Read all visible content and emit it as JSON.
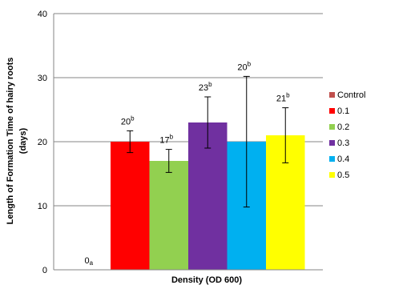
{
  "chart_data": {
    "type": "bar",
    "xlabel": "Density (OD 600)",
    "ylabel_line1": "Length of Formation Time of hairy roots",
    "ylabel_line2": "(days)",
    "ylim": [
      0,
      40
    ],
    "yticks": [
      "0",
      "10",
      "20",
      "30",
      "40"
    ],
    "grid": true,
    "legend_position": "right",
    "series": [
      {
        "name": "Control",
        "value": 0,
        "error": 0,
        "label": "0",
        "letter": "a",
        "color": "#C0504D"
      },
      {
        "name": "0.1",
        "value": 20,
        "error": 1.7,
        "label": "20",
        "letter": "b",
        "color": "#FF0000"
      },
      {
        "name": "0.2",
        "value": 17,
        "error": 1.8,
        "label": "17",
        "letter": "b",
        "color": "#92D050"
      },
      {
        "name": "0.3",
        "value": 23,
        "error": 4.0,
        "label": "23",
        "letter": "b",
        "color": "#7030A0"
      },
      {
        "name": "0.4",
        "value": 20,
        "error": 10.2,
        "label": "20",
        "letter": "b",
        "color": "#00B0F0"
      },
      {
        "name": "0.5",
        "value": 21,
        "error": 4.3,
        "label": "21",
        "letter": "b",
        "color": "#FFFF00"
      }
    ]
  }
}
